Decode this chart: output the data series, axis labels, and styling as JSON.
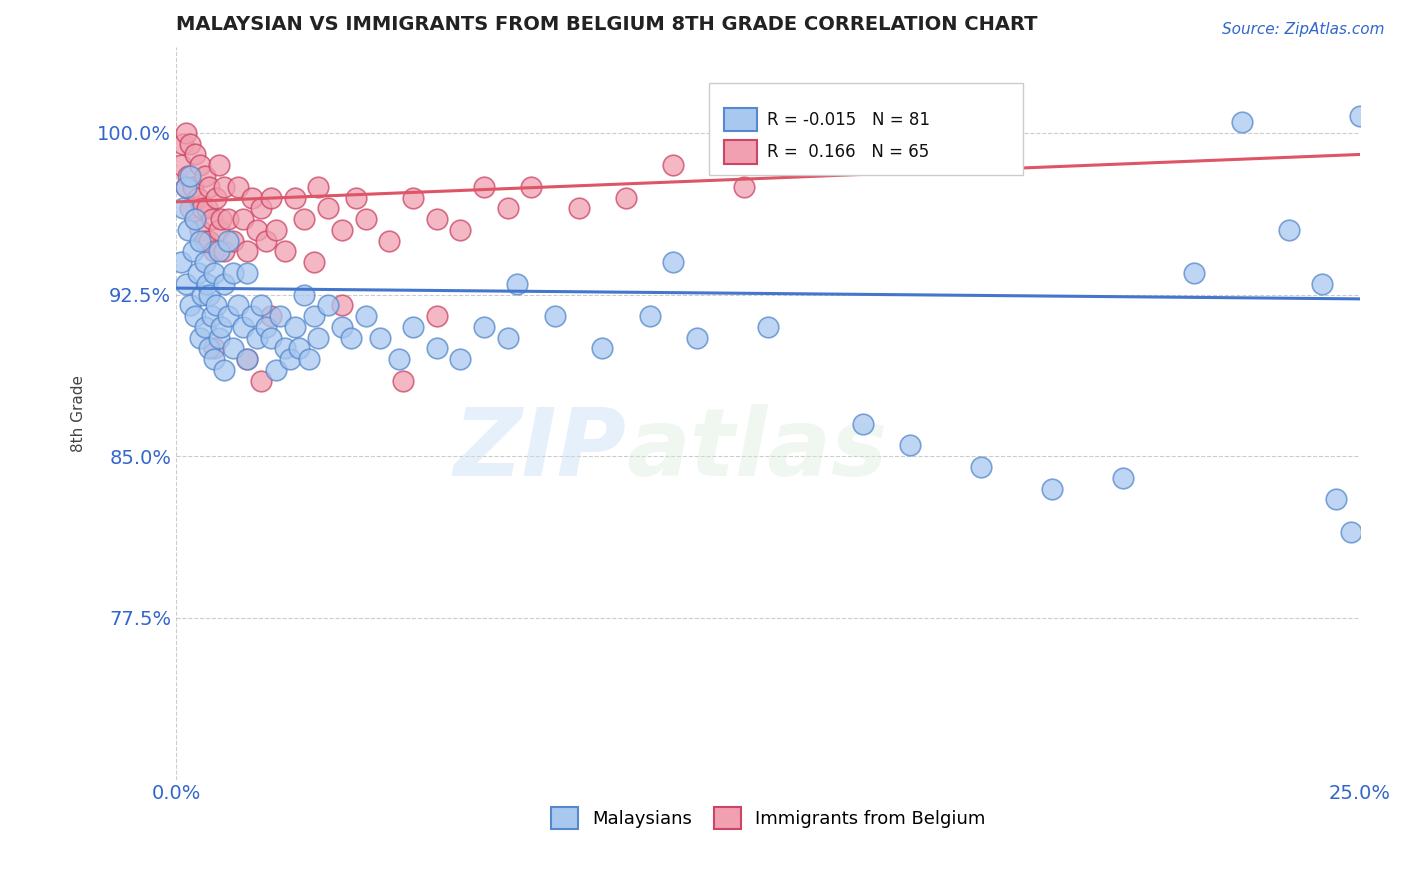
{
  "title": "MALAYSIAN VS IMMIGRANTS FROM BELGIUM 8TH GRADE CORRELATION CHART",
  "source": "Source: ZipAtlas.com",
  "xlim": [
    0.0,
    25.0
  ],
  "ylim": [
    70.0,
    104.0
  ],
  "ytick_vals": [
    77.5,
    85.0,
    92.5,
    100.0
  ],
  "xtick_vals": [
    0.0,
    25.0
  ],
  "legend_blue_label": "Malaysians",
  "legend_pink_label": "Immigrants from Belgium",
  "R_blue": -0.015,
  "N_blue": 81,
  "R_pink": 0.166,
  "N_pink": 65,
  "blue_color": "#a8c8f0",
  "pink_color": "#f0a0b0",
  "blue_edge_color": "#5588cc",
  "pink_edge_color": "#cc4466",
  "blue_line_color": "#4477cc",
  "pink_line_color": "#dd5566",
  "dashed_line_y": 99.5,
  "watermark_zip": "ZIP",
  "watermark_atlas": "atlas",
  "blue_line_y_at_0": 92.8,
  "blue_line_y_at_25": 92.3,
  "pink_line_y_at_0": 96.8,
  "pink_line_y_at_25": 99.0,
  "blue_points_x": [
    0.1,
    0.15,
    0.2,
    0.2,
    0.25,
    0.3,
    0.3,
    0.35,
    0.4,
    0.4,
    0.45,
    0.5,
    0.5,
    0.55,
    0.6,
    0.6,
    0.65,
    0.7,
    0.7,
    0.75,
    0.8,
    0.8,
    0.85,
    0.9,
    0.9,
    0.95,
    1.0,
    1.0,
    1.1,
    1.1,
    1.2,
    1.2,
    1.3,
    1.4,
    1.5,
    1.5,
    1.6,
    1.7,
    1.8,
    1.9,
    2.0,
    2.1,
    2.2,
    2.3,
    2.4,
    2.5,
    2.6,
    2.7,
    2.8,
    2.9,
    3.0,
    3.2,
    3.5,
    3.7,
    4.0,
    4.3,
    4.7,
    5.0,
    5.5,
    6.0,
    6.5,
    7.0,
    7.2,
    8.0,
    9.0,
    10.0,
    11.0,
    12.5,
    14.5,
    15.5,
    17.0,
    18.5,
    20.0,
    21.5,
    22.5,
    23.5,
    24.5,
    24.8,
    25.0,
    24.2,
    10.5
  ],
  "blue_points_y": [
    94.0,
    96.5,
    93.0,
    97.5,
    95.5,
    92.0,
    98.0,
    94.5,
    91.5,
    96.0,
    93.5,
    90.5,
    95.0,
    92.5,
    91.0,
    94.0,
    93.0,
    90.0,
    92.5,
    91.5,
    89.5,
    93.5,
    92.0,
    90.5,
    94.5,
    91.0,
    89.0,
    93.0,
    91.5,
    95.0,
    90.0,
    93.5,
    92.0,
    91.0,
    93.5,
    89.5,
    91.5,
    90.5,
    92.0,
    91.0,
    90.5,
    89.0,
    91.5,
    90.0,
    89.5,
    91.0,
    90.0,
    92.5,
    89.5,
    91.5,
    90.5,
    92.0,
    91.0,
    90.5,
    91.5,
    90.5,
    89.5,
    91.0,
    90.0,
    89.5,
    91.0,
    90.5,
    93.0,
    91.5,
    90.0,
    91.5,
    90.5,
    91.0,
    86.5,
    85.5,
    84.5,
    83.5,
    84.0,
    93.5,
    100.5,
    95.5,
    83.0,
    81.5,
    100.8,
    93.0,
    94.0
  ],
  "pink_points_x": [
    0.1,
    0.15,
    0.2,
    0.2,
    0.25,
    0.3,
    0.3,
    0.35,
    0.4,
    0.4,
    0.45,
    0.5,
    0.5,
    0.55,
    0.6,
    0.6,
    0.65,
    0.7,
    0.7,
    0.75,
    0.8,
    0.85,
    0.9,
    0.9,
    0.95,
    1.0,
    1.0,
    1.1,
    1.2,
    1.3,
    1.4,
    1.5,
    1.6,
    1.7,
    1.8,
    1.9,
    2.0,
    2.1,
    2.3,
    2.5,
    2.7,
    2.9,
    3.0,
    3.2,
    3.5,
    3.8,
    4.0,
    4.5,
    5.0,
    5.5,
    6.0,
    6.5,
    7.0,
    7.5,
    8.5,
    9.5,
    10.5,
    12.0,
    4.8,
    3.5,
    2.0,
    1.5,
    0.8,
    1.8,
    5.5
  ],
  "pink_points_y": [
    98.5,
    99.5,
    97.5,
    100.0,
    98.0,
    96.5,
    99.5,
    97.5,
    96.0,
    99.0,
    97.0,
    95.5,
    98.5,
    96.5,
    95.0,
    98.0,
    96.5,
    95.0,
    97.5,
    96.0,
    94.5,
    97.0,
    95.5,
    98.5,
    96.0,
    94.5,
    97.5,
    96.0,
    95.0,
    97.5,
    96.0,
    94.5,
    97.0,
    95.5,
    96.5,
    95.0,
    97.0,
    95.5,
    94.5,
    97.0,
    96.0,
    94.0,
    97.5,
    96.5,
    95.5,
    97.0,
    96.0,
    95.0,
    97.0,
    96.0,
    95.5,
    97.5,
    96.5,
    97.5,
    96.5,
    97.0,
    98.5,
    97.5,
    88.5,
    92.0,
    91.5,
    89.5,
    90.0,
    88.5,
    91.5
  ]
}
